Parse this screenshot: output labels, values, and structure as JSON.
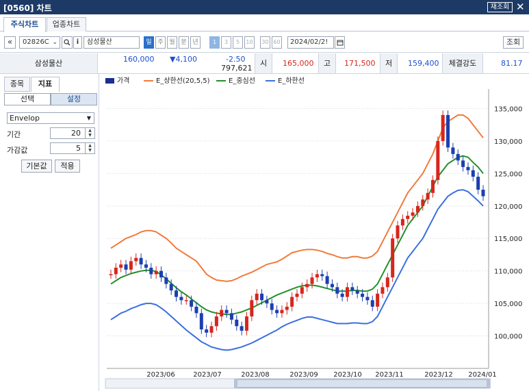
{
  "window": {
    "title": "[0560] 차트",
    "reload_label": "재조회",
    "close_label": "✕"
  },
  "tabs": [
    "주식차트",
    "업종차트"
  ],
  "toolbar": {
    "code": "02826C",
    "name": "삼성물산",
    "periods": [
      "일",
      "주",
      "월",
      "분",
      "년"
    ],
    "intervals": [
      "1",
      "3",
      "5",
      "10",
      "30",
      "60"
    ],
    "date": "2024/02/2!",
    "query_label": "조회"
  },
  "info": {
    "name": "삼성물산",
    "price": "160,000",
    "change": "▼4,100",
    "change_rate": "-2.50",
    "volume": "797,621",
    "open_label": "시",
    "open": "165,000",
    "high_label": "고",
    "high": "171,500",
    "low_label": "저",
    "low": "159,400",
    "strength_label": "체결강도",
    "strength": "81.17"
  },
  "left_panel": {
    "tabs": [
      "종목",
      "지표"
    ],
    "sub_buttons": [
      "선택",
      "설정"
    ],
    "indicator": "Envelop",
    "period_label": "기간",
    "period_value": "20",
    "add_label": "가감값",
    "add_value": "5",
    "default_btn": "기본값",
    "apply_btn": "적용"
  },
  "legend": [
    {
      "name": "가격",
      "color": "#1a2f8f"
    },
    {
      "name": "E_상한선(20,5,5)",
      "color": "#f07b3c"
    },
    {
      "name": "E_중심선",
      "color": "#22902a"
    },
    {
      "name": "E_하한선",
      "color": "#3a6fe0"
    }
  ],
  "chart_data": {
    "type": "line",
    "y_ticks": [
      "135,000",
      "130,000",
      "125,000",
      "120,000",
      "115,000",
      "110,000",
      "105,000",
      "100,000"
    ],
    "x_ticks": [
      "2023/06",
      "2023/07",
      "2023/08",
      "2023/09",
      "2023/10",
      "2023/11",
      "2023/12",
      "2024/01"
    ],
    "ylim": [
      95000,
      138000
    ],
    "series": [
      {
        "name": "가격",
        "values": [
          109500,
          110500,
          111000,
          110200,
          111500,
          112000,
          111000,
          110500,
          109500,
          110000,
          109000,
          108000,
          107000,
          106000,
          105500,
          105500,
          104500,
          103500,
          101000,
          100500,
          101500,
          103000,
          104000,
          103500,
          102500,
          101500,
          100800,
          103000,
          105500,
          106500,
          105500,
          105000,
          104000,
          103500,
          104000,
          104500,
          106000,
          106500,
          107500,
          108000,
          109000,
          109500,
          109200,
          108000,
          107500,
          106500,
          106000,
          107500,
          107000,
          106500,
          106000,
          105500,
          104500,
          106500,
          107500,
          109000,
          115000,
          117000,
          118000,
          118500,
          119000,
          120000,
          121000,
          122000,
          124000,
          130000,
          134000,
          129000,
          128000,
          127000,
          126000,
          125500,
          124500,
          122500,
          121500
        ]
      },
      {
        "name": "E_상한선(20,5,5)",
        "values": [
          113500,
          114000,
          114500,
          115000,
          115300,
          115600,
          116000,
          116200,
          116200,
          116000,
          115500,
          115000,
          114300,
          113500,
          113000,
          112500,
          112000,
          111500,
          110500,
          109500,
          109000,
          108600,
          108500,
          108400,
          108500,
          108800,
          109200,
          109500,
          109800,
          110200,
          110600,
          111000,
          111200,
          111400,
          111800,
          112300,
          112800,
          113000,
          113200,
          113300,
          113300,
          113200,
          113000,
          112700,
          112500,
          112200,
          112000,
          112000,
          112200,
          112200,
          112000,
          112000,
          112300,
          113000,
          114500,
          116000,
          117500,
          119000,
          120500,
          122000,
          123000,
          124000,
          125000,
          126500,
          128000,
          130000,
          132000,
          133000,
          133500,
          134000,
          134000,
          133500,
          132500,
          131500,
          130500
        ]
      },
      {
        "name": "E_중심선",
        "values": [
          108000,
          108500,
          109000,
          109300,
          109600,
          109800,
          110000,
          110100,
          110100,
          109900,
          109400,
          108800,
          108100,
          107400,
          106800,
          106300,
          105700,
          105100,
          104500,
          104000,
          103700,
          103500,
          103400,
          103300,
          103300,
          103500,
          103700,
          104000,
          104300,
          104700,
          105100,
          105500,
          105900,
          106300,
          106600,
          106900,
          107200,
          107500,
          107700,
          107800,
          107800,
          107700,
          107500,
          107300,
          107100,
          106900,
          106900,
          106900,
          107000,
          107000,
          106900,
          106900,
          107200,
          108000,
          109500,
          111000,
          112500,
          114000,
          115500,
          117000,
          118000,
          119000,
          120000,
          121500,
          123000,
          124500,
          125500,
          126500,
          127000,
          127500,
          127700,
          127500,
          126700,
          126000,
          125000
        ]
      },
      {
        "name": "E_하한선",
        "values": [
          102500,
          103000,
          103500,
          103800,
          104200,
          104500,
          104800,
          105000,
          105000,
          104800,
          104300,
          103700,
          103000,
          102300,
          101600,
          100900,
          100300,
          99700,
          99100,
          98700,
          98300,
          98100,
          97900,
          97800,
          97900,
          98100,
          98300,
          98600,
          98900,
          99300,
          99700,
          100100,
          100500,
          100900,
          101400,
          101800,
          102100,
          102400,
          102700,
          102900,
          102900,
          102700,
          102500,
          102300,
          102100,
          101900,
          101900,
          101900,
          102000,
          102000,
          101900,
          101900,
          102200,
          103000,
          104500,
          106000,
          107500,
          109000,
          110500,
          112000,
          113000,
          114000,
          115000,
          116500,
          118000,
          119500,
          120500,
          121500,
          122000,
          122400,
          122500,
          122200,
          121500,
          120800,
          120000
        ]
      }
    ]
  },
  "scrollbar": {
    "label": "scroll"
  }
}
